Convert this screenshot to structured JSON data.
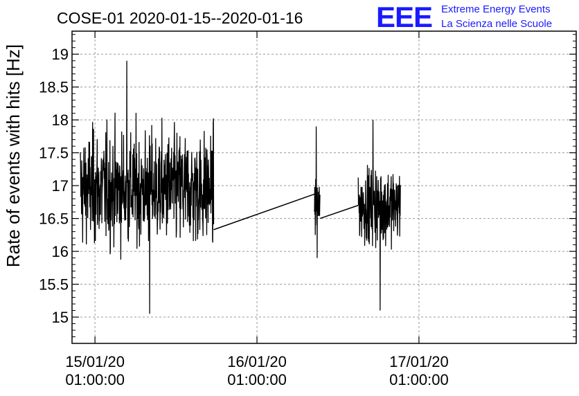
{
  "header": {
    "title": "COSE-01 2020-01-15--2020-01-16",
    "logo_text": "EEE",
    "org_line1": "Extreme Energy Events",
    "org_line2": "La Scienza nelle Scuole"
  },
  "colors": {
    "series": "#000000",
    "logo": "#1a1aff",
    "grid": "#999999",
    "axis": "#000000"
  },
  "chart_data": {
    "type": "line",
    "title": "COSE-01 2020-01-15--2020-01-16",
    "ylabel": "Rate of events with hits [Hz]",
    "xlabel": "",
    "ylim": [
      14.6,
      19.35
    ],
    "xlim_hours_from_2020-01-15T00:00": [
      -2.4,
      72.3
    ],
    "grid": "dashed",
    "x_ticks": [
      {
        "line1": "15/01/20",
        "line2": "01:00:00",
        "at": "2020-01-15 01:00:00"
      },
      {
        "line1": "16/01/20",
        "line2": "01:00:00",
        "at": "2020-01-16 01:00:00"
      },
      {
        "line1": "17/01/20",
        "line2": "01:00:00",
        "at": "2020-01-17 01:00:00"
      }
    ],
    "y_ticks": [
      "15",
      "15.5",
      "16",
      "16.5",
      "17",
      "17.5",
      "18",
      "18.5",
      "19"
    ],
    "y_tick_values": [
      15,
      15.5,
      16,
      16.5,
      17,
      17.5,
      18,
      18.5,
      19
    ],
    "segments": [
      {
        "start": "2020-01-14 22:50",
        "end": "2020-01-15 18:35",
        "mean": 16.95,
        "min": 15.05,
        "max": 18.9
      },
      {
        "start": "2020-01-16 09:30",
        "end": "2020-01-16 10:20",
        "mean": 16.7,
        "min": 15.9,
        "max": 17.9
      },
      {
        "start": "2020-01-16 16:00",
        "end": "2020-01-16 22:15",
        "mean": 16.7,
        "min": 15.1,
        "max": 18.0
      }
    ],
    "connector_lines": [
      {
        "from": [
          "2020-01-15 18:35",
          16.33
        ],
        "to": [
          "2020-01-16 09:30",
          16.87
        ]
      },
      {
        "from": [
          "2020-01-16 10:20",
          16.5
        ],
        "to": [
          "2020-01-16 16:00",
          16.7
        ]
      }
    ]
  }
}
